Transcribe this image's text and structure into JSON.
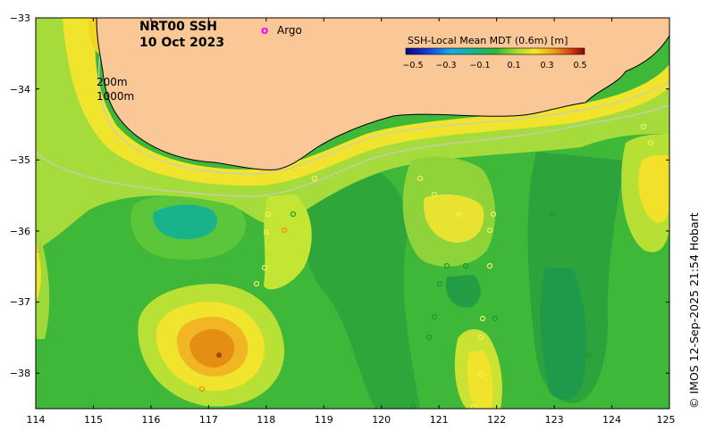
{
  "map": {
    "title_line1": "NRT00 SSH",
    "title_line2": "10 Oct 2023",
    "legend_marker": "o",
    "legend_label": "Argo",
    "contour_label_200": "200m",
    "contour_label_1000": "1000m",
    "credit": "© IMOS 12-Sep-2025 21:54 Hobart",
    "colorbar": {
      "title": "SSH-Local Mean MDT (0.6m) [m]",
      "ticks": [
        "−0.5",
        "−0.3",
        "−0.1",
        "0.1",
        "0.3",
        "0.5"
      ],
      "range": [
        -0.5,
        0.5
      ]
    },
    "x_ticks": [
      "114",
      "115",
      "116",
      "117",
      "118",
      "119",
      "120",
      "121",
      "122",
      "123",
      "124",
      "125"
    ],
    "y_ticks": [
      "−33",
      "−34",
      "−35",
      "−36",
      "−37",
      "−38"
    ],
    "lon_range": [
      114,
      125
    ],
    "lat_range": [
      -38.5,
      -33
    ],
    "colors": {
      "land": "#f9c896",
      "ocean_base": "#3fb83a",
      "shelf": "#b4e03a",
      "coast_yellow": "#f2e62a",
      "warm_eddy_core": "#e48a10",
      "argo": "#ff00ff"
    }
  }
}
